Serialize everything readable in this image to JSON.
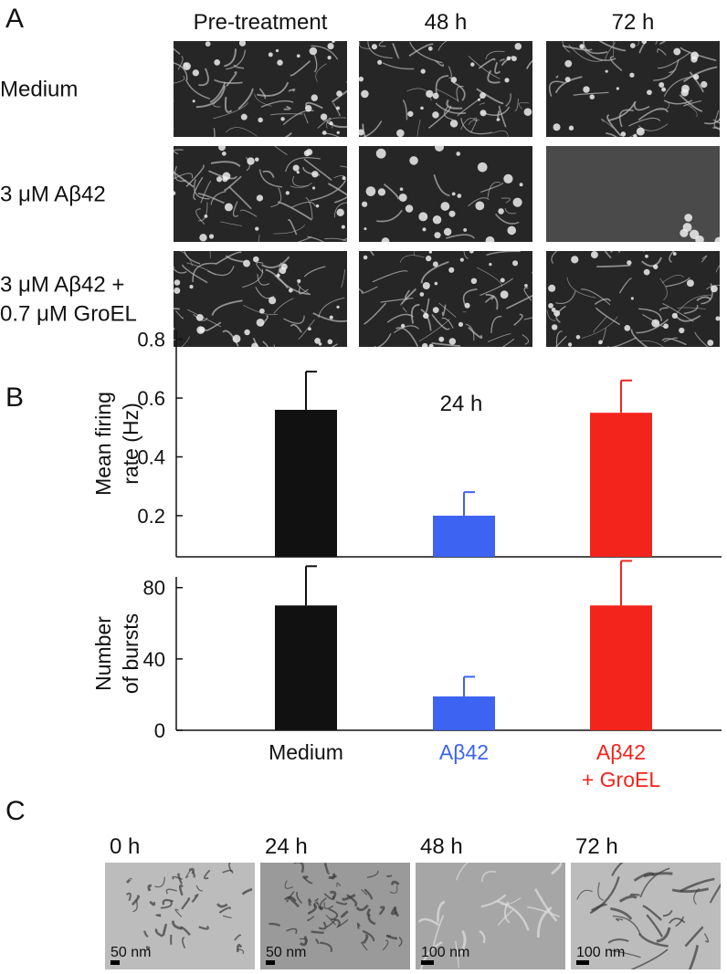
{
  "panel_labels": [
    "A",
    "B",
    "C"
  ],
  "panel_a": {
    "columns": [
      "Pre-treatment",
      "48 h",
      "72 h"
    ],
    "rows": [
      [
        "Medium"
      ],
      [
        "3 μM Aβ42"
      ],
      [
        "3 μM Aβ42 +",
        "0.7 μM GroEL"
      ]
    ]
  },
  "chart_data": [
    {
      "type": "bar",
      "title": "24 h",
      "ylabel": [
        "Mean firing",
        "rate (Hz)"
      ],
      "values": [
        0.56,
        0.2,
        0.55
      ],
      "errors": [
        0.13,
        0.08,
        0.11
      ],
      "colors": [
        "#111111",
        "#3d63f2",
        "#f3241c"
      ],
      "ylim": [
        0.06,
        0.83
      ],
      "yticks": [
        0.2,
        0.4,
        0.6,
        0.8
      ]
    },
    {
      "type": "bar",
      "ylabel": [
        "Number",
        "of bursts"
      ],
      "categories": [
        [
          "Medium"
        ],
        [
          "Aβ42"
        ],
        [
          "Aβ42",
          "+ GroEL"
        ]
      ],
      "values": [
        70,
        19,
        70
      ],
      "errors": [
        22,
        11,
        25
      ],
      "colors": [
        "#111111",
        "#3d63f2",
        "#f3241c"
      ],
      "ylim": [
        0,
        86
      ],
      "yticks": [
        0,
        40,
        80
      ]
    }
  ],
  "panel_c": {
    "images": [
      {
        "time": "0 h",
        "scale": "50 nm"
      },
      {
        "time": "24 h",
        "scale": "50 nm"
      },
      {
        "time": "48 h",
        "scale": "100 nm"
      },
      {
        "time": "72 h",
        "scale": "100 nm"
      }
    ]
  }
}
